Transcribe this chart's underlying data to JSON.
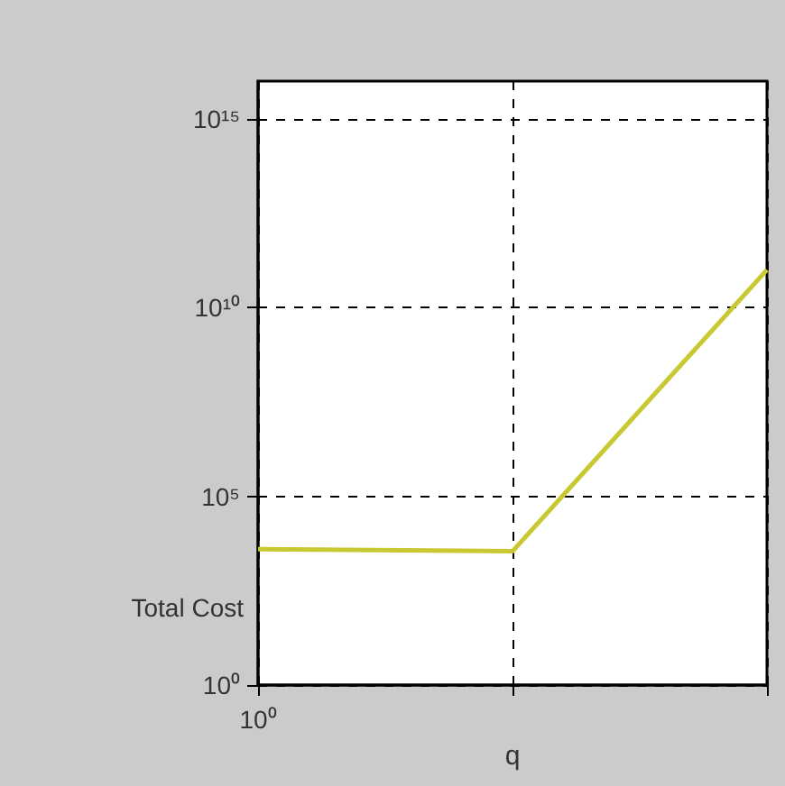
{
  "chart_data": {
    "type": "line",
    "xlabel": "q",
    "ylabel": "Total Cost",
    "categories": [
      "10⁰",
      null,
      null
    ],
    "series": [
      {
        "color": "#c8c832",
        "values": [
          4000,
          3500,
          100000000000
        ]
      }
    ],
    "log": "y",
    "ylim": [
      1,
      10000000000000000
    ],
    "yticks": [
      {
        "value": 1,
        "label": "10⁰"
      },
      {
        "value": 100000,
        "label": "10⁵"
      },
      {
        "value": 10000000000,
        "label": "10¹⁰"
      },
      {
        "value": 1000000000000000,
        "label": "10¹⁵"
      }
    ],
    "grid": true,
    "marker": "none",
    "line_style": "solid"
  }
}
